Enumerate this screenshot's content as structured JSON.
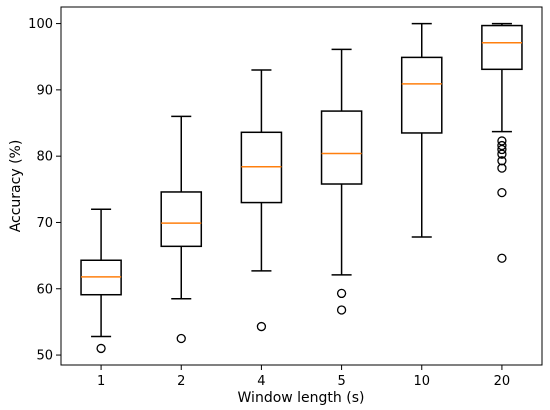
{
  "chart_data": {
    "type": "boxplot",
    "title": "",
    "xlabel": "Window length (s)",
    "ylabel": "Accuracy (%)",
    "ylim": [
      48.5,
      102.5
    ],
    "yticks": [
      50,
      60,
      70,
      80,
      90,
      100
    ],
    "grid": false,
    "categories": [
      "1",
      "2",
      "4",
      "5",
      "10",
      "20"
    ],
    "boxes": [
      {
        "category": "1",
        "whisker_low": 52.8,
        "q1": 59.1,
        "median": 61.8,
        "q3": 64.3,
        "whisker_high": 72.0,
        "outliers": [
          51.0
        ]
      },
      {
        "category": "2",
        "whisker_low": 58.5,
        "q1": 66.4,
        "median": 69.9,
        "q3": 74.6,
        "whisker_high": 86.0,
        "outliers": [
          52.5
        ]
      },
      {
        "category": "4",
        "whisker_low": 62.7,
        "q1": 73.0,
        "median": 78.4,
        "q3": 83.6,
        "whisker_high": 93.0,
        "outliers": [
          54.3
        ]
      },
      {
        "category": "5",
        "whisker_low": 62.1,
        "q1": 75.8,
        "median": 80.4,
        "q3": 86.8,
        "whisker_high": 96.1,
        "outliers": [
          59.3,
          56.8
        ]
      },
      {
        "category": "10",
        "whisker_low": 67.8,
        "q1": 83.5,
        "median": 90.9,
        "q3": 94.9,
        "whisker_high": 100.0,
        "outliers": []
      },
      {
        "category": "20",
        "whisker_low": 83.7,
        "q1": 93.1,
        "median": 97.1,
        "q3": 99.7,
        "whisker_high": 100.0,
        "outliers": [
          82.3,
          81.6,
          81.0,
          80.3,
          79.3,
          78.2,
          74.5,
          64.6
        ]
      }
    ],
    "colors": {
      "box": "#000000",
      "median": "#ff7f0e",
      "outlier": "#000000"
    }
  }
}
